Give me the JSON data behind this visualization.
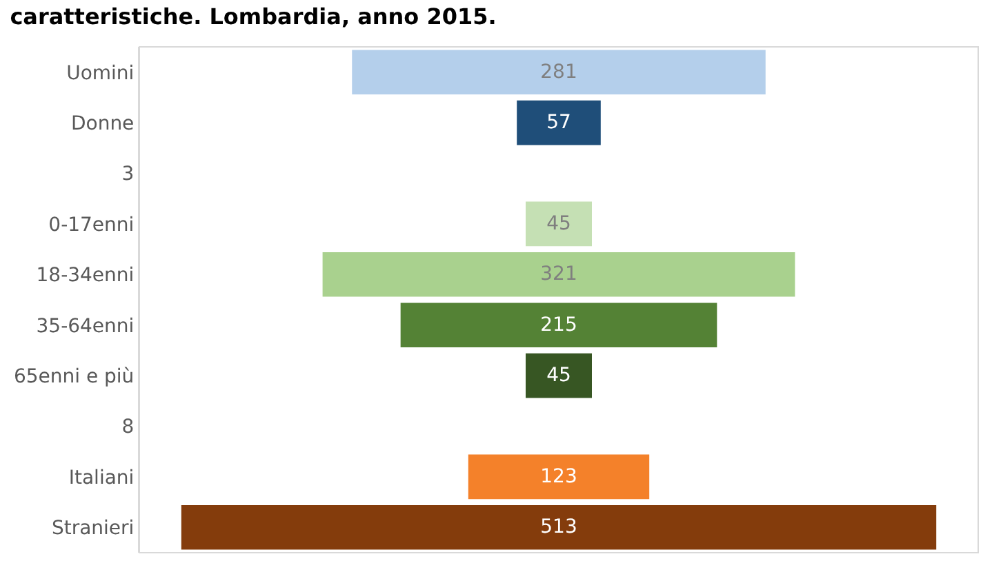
{
  "chart_data": {
    "type": "other",
    "title": "caratteristiche. Lombardia, anno 2015.",
    "categories": [
      "Uomini",
      "Donne",
      "3",
      "0-17enni",
      "18-34enni",
      "35-64enni",
      "65enni e più",
      "8",
      "Italiani",
      "Stranieri"
    ],
    "values": [
      281,
      57,
      null,
      45,
      321,
      215,
      45,
      null,
      123,
      513
    ],
    "colors": [
      "#b4cfeb",
      "#1f4e79",
      null,
      "#c5e0b4",
      "#a9d18e",
      "#548235",
      "#375623",
      null,
      "#f4812a",
      "#843c0c"
    ],
    "data_labels": true
  }
}
